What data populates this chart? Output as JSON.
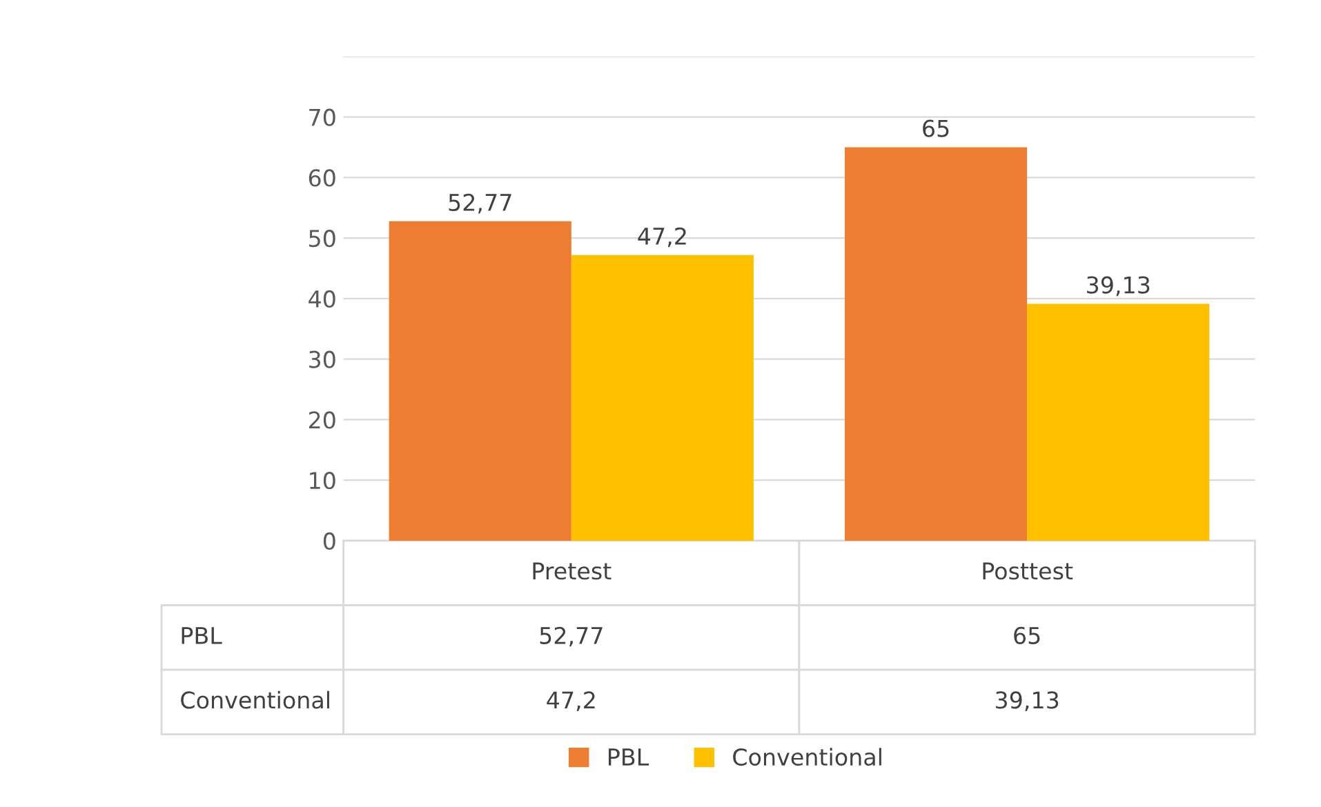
{
  "chart_data": {
    "type": "bar",
    "categories": [
      "Pretest",
      "Posttest"
    ],
    "series": [
      {
        "name": "PBL",
        "color": "#ed7d31",
        "values": [
          52.77,
          65
        ],
        "value_labels": [
          "52,77",
          "65"
        ]
      },
      {
        "name": "Conventional",
        "color": "#ffc000",
        "values": [
          47.2,
          39.13
        ],
        "value_labels": [
          "47,2",
          "39,13"
        ]
      }
    ],
    "ylim": [
      0,
      80
    ],
    "yticks": [
      0,
      10,
      20,
      30,
      40,
      50,
      60,
      70,
      {
        "value": 80,
        "label": null
      }
    ],
    "grid": "y",
    "legend": "bottom"
  }
}
